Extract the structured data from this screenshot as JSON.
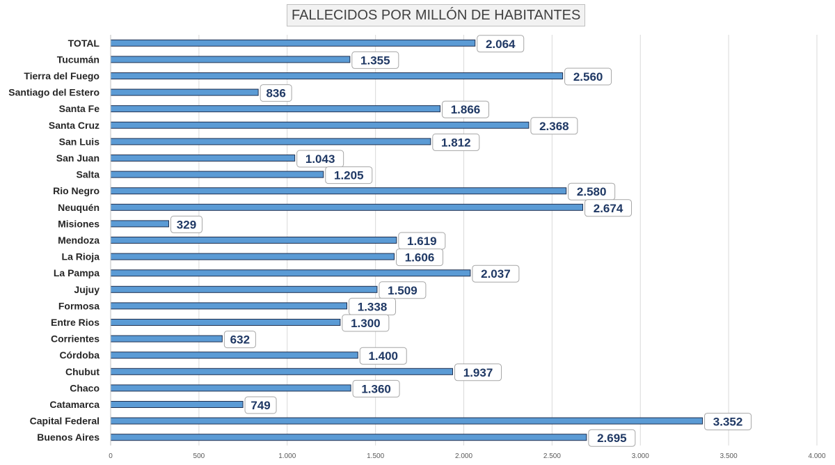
{
  "chart_data": {
    "type": "bar",
    "orientation": "horizontal",
    "title": "FALLECIDOS POR MILLÓN DE HABITANTES",
    "categories": [
      "TOTAL",
      "Tucumán",
      "Tierra del Fuego",
      "Santiago del Estero",
      "Santa Fe",
      "Santa Cruz",
      "San Luis",
      "San Juan",
      "Salta",
      "Rio Negro",
      "Neuquén",
      "Misiones",
      "Mendoza",
      "La Rioja",
      "La Pampa",
      "Jujuy",
      "Formosa",
      "Entre Rios",
      "Corrientes",
      "Córdoba",
      "Chubut",
      "Chaco",
      "Catamarca",
      "Capital Federal",
      "Buenos Aires"
    ],
    "values": [
      2064,
      1355,
      2560,
      836,
      1866,
      2368,
      1812,
      1043,
      1205,
      2580,
      2674,
      329,
      1619,
      1606,
      2037,
      1509,
      1338,
      1300,
      632,
      1400,
      1937,
      1360,
      749,
      3352,
      2695
    ],
    "value_labels": [
      "2.064",
      "1.355",
      "2.560",
      "836",
      "1.866",
      "2.368",
      "1.812",
      "1.043",
      "1.205",
      "2.580",
      "2.674",
      "329",
      "1.619",
      "1.606",
      "2.037",
      "1.509",
      "1.338",
      "1.300",
      "632",
      "1.400",
      "1.937",
      "1.360",
      "749",
      "3.352",
      "2.695"
    ],
    "xlim": [
      0,
      4000
    ],
    "xticks": [
      0,
      500,
      1000,
      1500,
      2000,
      2500,
      3000,
      3500,
      4000
    ],
    "xtick_labels": [
      "0",
      "500",
      "1.000",
      "1.500",
      "2.000",
      "2.500",
      "3.000",
      "3.500",
      "4.000"
    ],
    "grid": true,
    "legend": "none",
    "colors": {
      "bar_fill": "#5b9bd5",
      "bar_edge": "#1f2f4f",
      "label_text": "#1f3864",
      "label_border": "#a6a6a6",
      "grid": "#d9d9d9"
    }
  }
}
